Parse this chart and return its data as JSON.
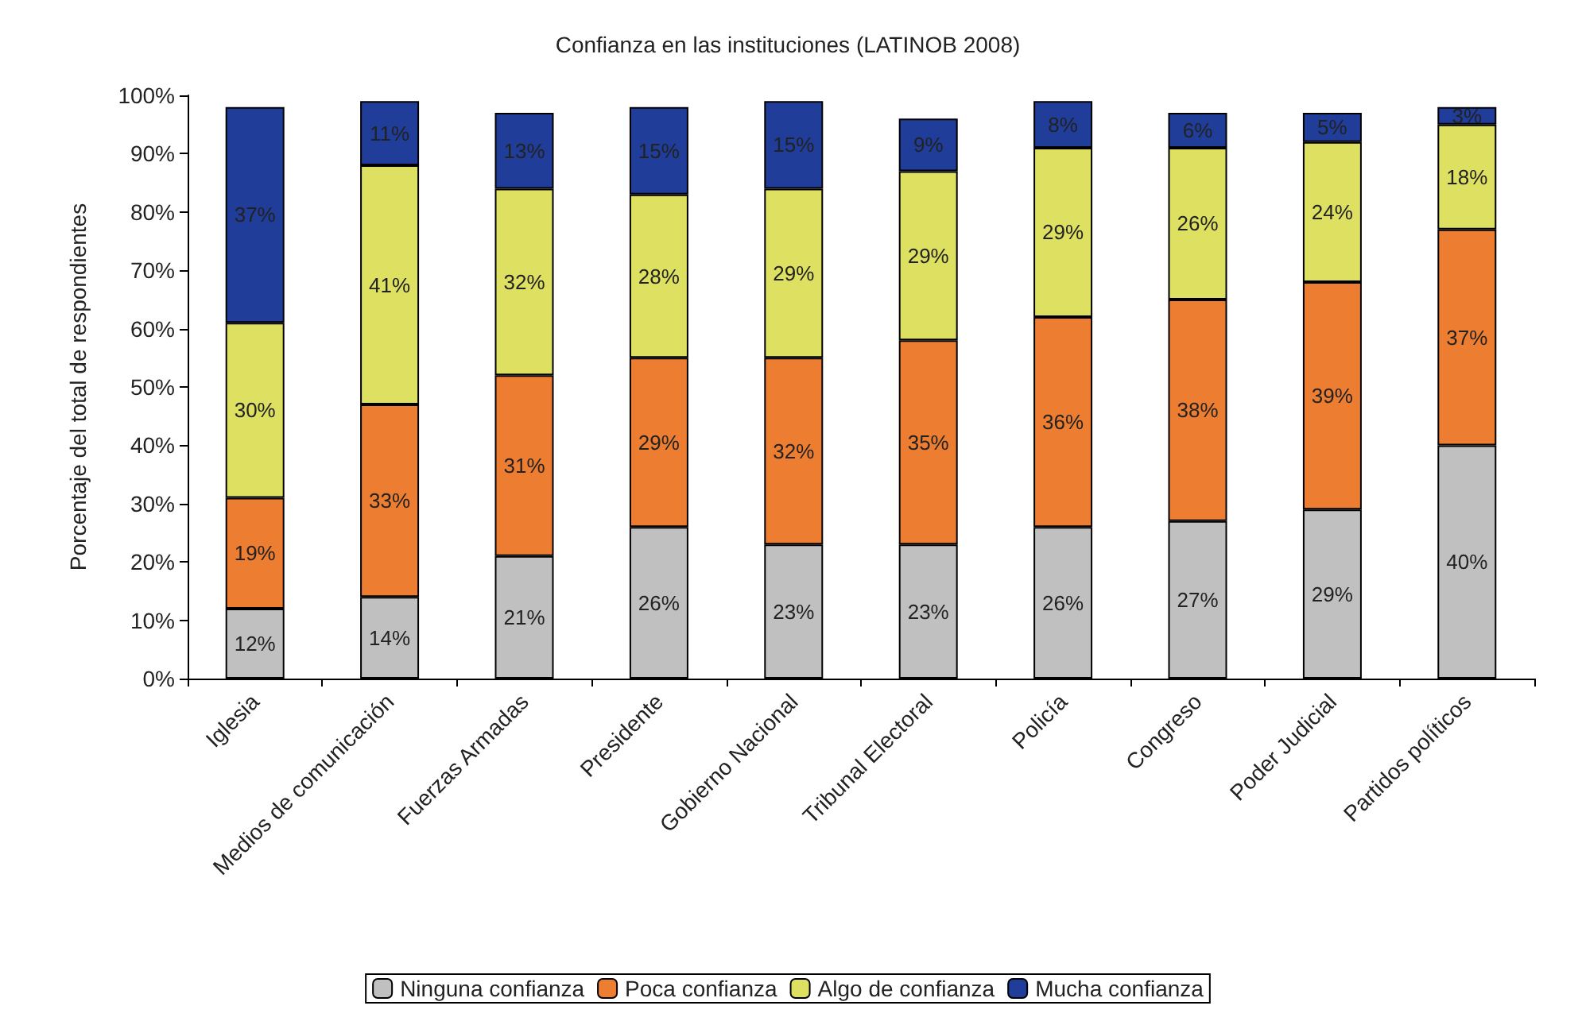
{
  "chart_data": {
    "type": "bar",
    "stacked": true,
    "title": "Confianza en las instituciones (LATINOB 2008)",
    "ylabel": "Porcentaje del total de respondientes",
    "categories": [
      "Iglesia",
      "Medios de comunicación",
      "Fuerzas Armadas",
      "Presidente",
      "Gobierno Nacional",
      "Tribunal Electoral",
      "Policía",
      "Congreso",
      "Poder Judicial",
      "Partidos políticos"
    ],
    "series": [
      {
        "name": "Ninguna confianza",
        "color": "#c0c0c0",
        "values": [
          12,
          14,
          21,
          26,
          23,
          23,
          26,
          27,
          29,
          40
        ],
        "value_labels": [
          "12%",
          "14%",
          "21%",
          "26%",
          "23%",
          "23%",
          "26%",
          "27%",
          "29%",
          "40%"
        ]
      },
      {
        "name": "Poca confianza",
        "color": "#ed7d31",
        "values": [
          19,
          33,
          31,
          29,
          32,
          35,
          36,
          38,
          39,
          37
        ],
        "value_labels": [
          "19%",
          "33%",
          "31%",
          "29%",
          "32%",
          "35%",
          "36%",
          "38%",
          "39%",
          "37%"
        ]
      },
      {
        "name": "Algo de confianza",
        "color": "#dde060",
        "values": [
          30,
          41,
          32,
          28,
          29,
          29,
          29,
          26,
          24,
          18
        ],
        "value_labels": [
          "30%",
          "41%",
          "32%",
          "28%",
          "29%",
          "29%",
          "29%",
          "26%",
          "24%",
          "18%"
        ]
      },
      {
        "name": "Mucha confianza",
        "color": "#1f3d99",
        "values": [
          37,
          11,
          13,
          15,
          15,
          9,
          8,
          6,
          5,
          3
        ],
        "value_labels": [
          "37%",
          "11%",
          "13%",
          "15%",
          "15%",
          "9%",
          "8%",
          "6%",
          "5%",
          "3%"
        ]
      }
    ],
    "ylim": [
      0,
      100
    ],
    "yticks": [
      {
        "value": 0,
        "label": "0%"
      },
      {
        "value": 10,
        "label": "10%"
      },
      {
        "value": 20,
        "label": "20%"
      },
      {
        "value": 30,
        "label": "30%"
      },
      {
        "value": 40,
        "label": "40%"
      },
      {
        "value": 50,
        "label": "50%"
      },
      {
        "value": 60,
        "label": "60%"
      },
      {
        "value": 70,
        "label": "70%"
      },
      {
        "value": 80,
        "label": "80%"
      },
      {
        "value": 90,
        "label": "90%"
      },
      {
        "value": 100,
        "label": "100%"
      }
    ],
    "grid": false,
    "legend": "bottom"
  }
}
